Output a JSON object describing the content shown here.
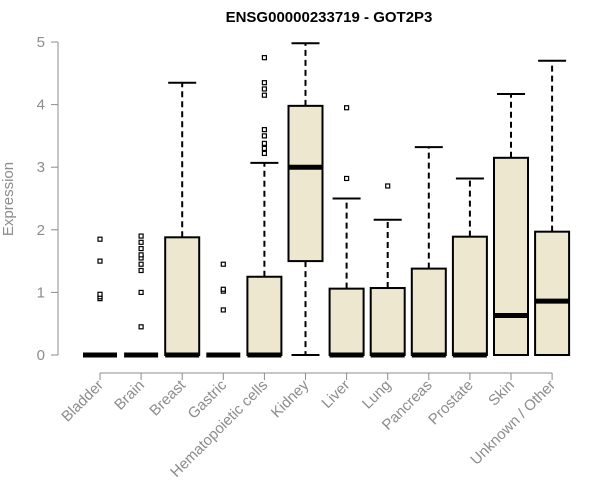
{
  "chart_data": {
    "type": "boxplot",
    "title": "ENSG00000233719 - GOT2P3",
    "ylabel": "Expression",
    "xlabel": "",
    "ylim": [
      0,
      5
    ],
    "yticks": [
      "0",
      "1",
      "2",
      "3",
      "4",
      "5"
    ],
    "box_color": "#ede7cf",
    "categories": [
      "Bladder",
      "Brain",
      "Breast",
      "Gastric",
      "Hematopoietic cells",
      "Kidney",
      "Liver",
      "Lung",
      "Pancreas",
      "Prostate",
      "Skin",
      "Unknown / Other"
    ],
    "boxes": [
      {
        "min": 0,
        "q1": 0,
        "median": 0,
        "q3": 0,
        "max": 0,
        "outliers": [
          0.9,
          0.93,
          0.97,
          1.5,
          1.85
        ]
      },
      {
        "min": 0,
        "q1": 0,
        "median": 0,
        "q3": 0,
        "max": 0,
        "outliers": [
          0.45,
          1.0,
          1.35,
          1.45,
          1.55,
          1.6,
          1.7,
          1.8,
          1.9
        ]
      },
      {
        "min": 0,
        "q1": 0,
        "median": 0,
        "q3": 1.88,
        "max": 4.35,
        "outliers": []
      },
      {
        "min": 0,
        "q1": 0,
        "median": 0,
        "q3": 0,
        "max": 0,
        "outliers": [
          0.72,
          1.02,
          1.05,
          1.45
        ]
      },
      {
        "min": 0,
        "q1": 0,
        "median": 0,
        "q3": 1.25,
        "max": 3.07,
        "outliers": [
          3.22,
          3.3,
          3.38,
          3.5,
          3.6,
          4.15,
          4.25,
          4.35,
          4.75
        ]
      },
      {
        "min": 0,
        "q1": 1.5,
        "median": 3.0,
        "q3": 3.98,
        "max": 4.98,
        "outliers": []
      },
      {
        "min": 0,
        "q1": 0,
        "median": 0,
        "q3": 1.06,
        "max": 2.5,
        "outliers": [
          2.82,
          3.95
        ]
      },
      {
        "min": 0,
        "q1": 0,
        "median": 0,
        "q3": 1.07,
        "max": 2.16,
        "outliers": [
          2.7
        ]
      },
      {
        "min": 0,
        "q1": 0,
        "median": 0,
        "q3": 1.38,
        "max": 3.32,
        "outliers": []
      },
      {
        "min": 0,
        "q1": 0,
        "median": 0,
        "q3": 1.89,
        "max": 2.82,
        "outliers": []
      },
      {
        "min": 0,
        "q1": 0,
        "median": 0.63,
        "q3": 3.15,
        "max": 4.17,
        "outliers": []
      },
      {
        "min": 0,
        "q1": 0,
        "median": 0.86,
        "q3": 1.97,
        "max": 4.7,
        "outliers": []
      }
    ]
  }
}
